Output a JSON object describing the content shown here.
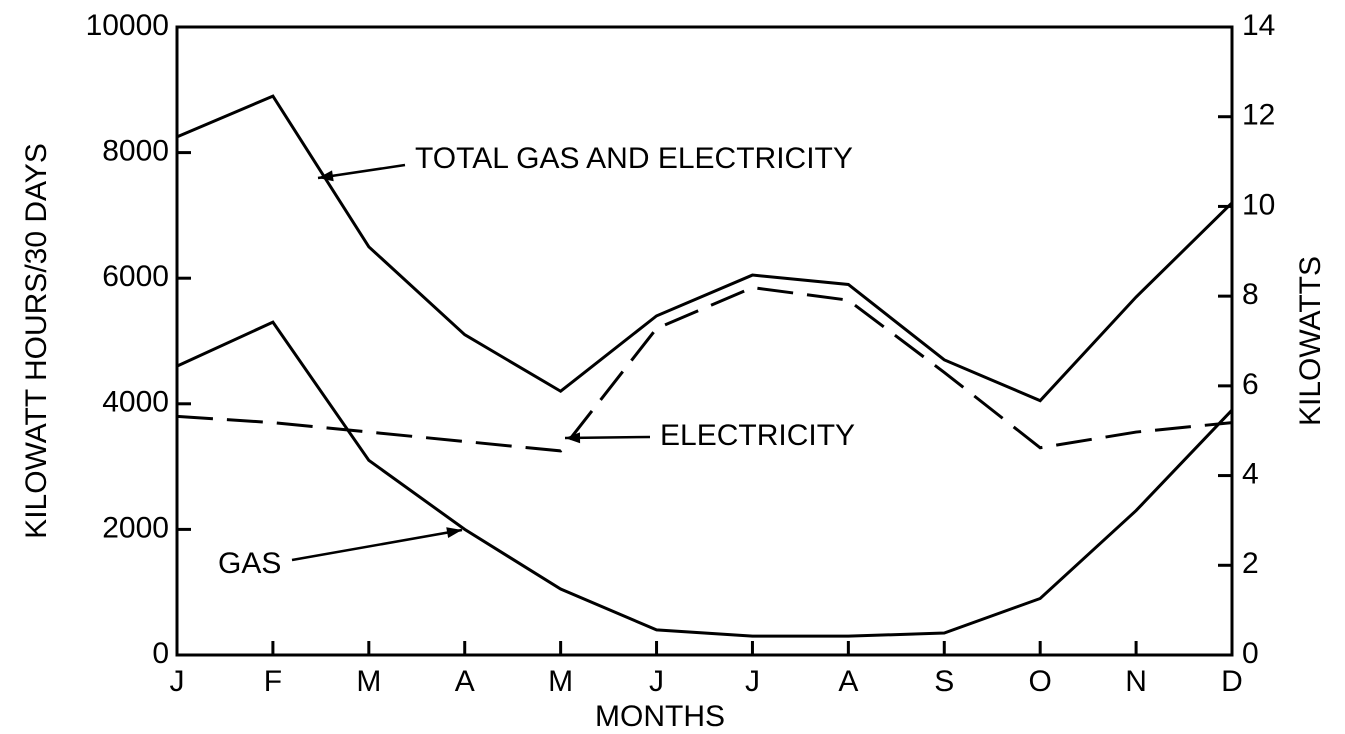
{
  "chart_data": {
    "type": "line",
    "ylabel": "KILOWATT HOURS/30 DAYS",
    "y2label": "KILOWATTS",
    "xlabel": "MONTHS",
    "categories": [
      "J",
      "F",
      "M",
      "A",
      "M",
      "J",
      "J",
      "A",
      "S",
      "O",
      "N",
      "D"
    ],
    "series": [
      {
        "name": "TOTAL GAS AND ELECTRICITY",
        "color": "#000000",
        "style": "solid",
        "values": [
          8250,
          8900,
          6500,
          5100,
          4200,
          5400,
          6050,
          5900,
          4700,
          4050,
          5700,
          7200
        ]
      },
      {
        "name": "ELECTRICITY",
        "color": "#000000",
        "style": "dashed",
        "values": [
          3800,
          3700,
          3550,
          3400,
          3250,
          5200,
          5850,
          5650,
          4500,
          3300,
          3550,
          3700
        ]
      },
      {
        "name": "GAS",
        "color": "#000000",
        "style": "solid",
        "values": [
          4600,
          5300,
          3100,
          2000,
          1050,
          400,
          300,
          300,
          350,
          900,
          2300,
          3900
        ]
      }
    ],
    "ylim": [
      0,
      10000
    ],
    "yticks": [
      0,
      2000,
      4000,
      6000,
      8000,
      10000
    ],
    "y2lim": [
      0,
      14
    ],
    "y2ticks": [
      0,
      2,
      4,
      6,
      8,
      10,
      12,
      14
    ]
  }
}
